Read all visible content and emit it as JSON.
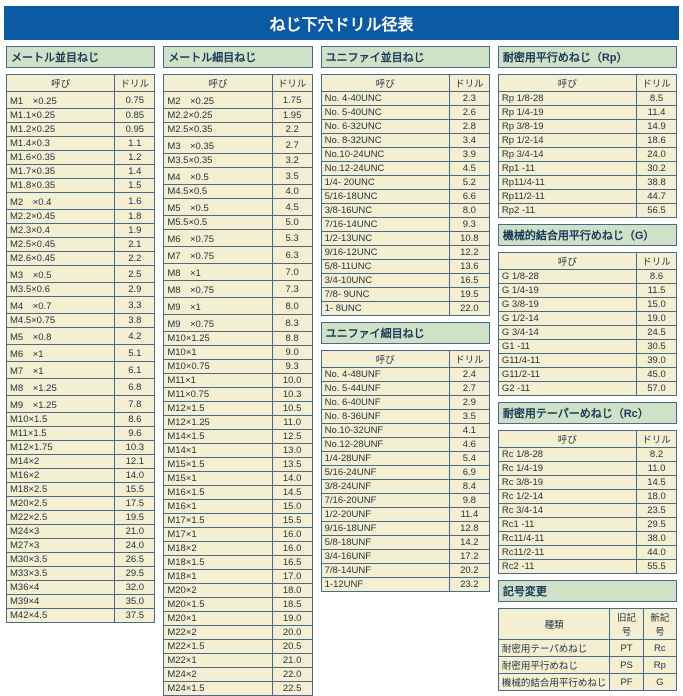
{
  "title": "ねじ下穴ドリル径表",
  "col1": {
    "label": "メートル並目ねじ",
    "headers": [
      "呼び",
      "ドリル"
    ],
    "rows": [
      [
        "M1　×0.25",
        "0.75"
      ],
      [
        "M1.1×0.25",
        "0.85"
      ],
      [
        "M1.2×0.25",
        "0.95"
      ],
      [
        "M1.4×0.3",
        "1.1"
      ],
      [
        "M1.6×0.35",
        "1.2"
      ],
      [
        "M1.7×0.35",
        "1.4"
      ],
      [
        "M1.8×0.35",
        "1.5"
      ],
      [
        "M2　×0.4",
        "1.6"
      ],
      [
        "M2.2×0.45",
        "1.8"
      ],
      [
        "M2.3×0.4",
        "1.9"
      ],
      [
        "M2.5×0.45",
        "2.1"
      ],
      [
        "M2.6×0.45",
        "2.2"
      ],
      [
        "M3　×0.5",
        "2.5"
      ],
      [
        "M3.5×0.6",
        "2.9"
      ],
      [
        "M4　×0.7",
        "3.3"
      ],
      [
        "M4.5×0.75",
        "3.8"
      ],
      [
        "M5　×0.8",
        "4.2"
      ],
      [
        "M6　×1",
        "5.1"
      ],
      [
        "M7　×1",
        "6.1"
      ],
      [
        "M8　×1.25",
        "6.8"
      ],
      [
        "M9　×1.25",
        "7.8"
      ],
      [
        "M10×1.5",
        "8.6"
      ],
      [
        "M11×1.5",
        "9.6"
      ],
      [
        "M12×1.75",
        "10.3"
      ],
      [
        "M14×2",
        "12.1"
      ],
      [
        "M16×2",
        "14.0"
      ],
      [
        "M18×2.5",
        "15.5"
      ],
      [
        "M20×2.5",
        "17.5"
      ],
      [
        "M22×2.5",
        "19.5"
      ],
      [
        "M24×3",
        "21.0"
      ],
      [
        "M27×3",
        "24.0"
      ],
      [
        "M30×3.5",
        "26.5"
      ],
      [
        "M33×3.5",
        "29.5"
      ],
      [
        "M36×4",
        "32.0"
      ],
      [
        "M39×4",
        "35.0"
      ],
      [
        "M42×4.5",
        "37.5"
      ]
    ]
  },
  "col2": {
    "label": "メートル細目ねじ",
    "headers": [
      "呼び",
      "ドリル"
    ],
    "rows": [
      [
        "M2　×0.25",
        "1.75"
      ],
      [
        "M2.2×0.25",
        "1.95"
      ],
      [
        "M2.5×0.35",
        "2.2"
      ],
      [
        "M3　×0.35",
        "2.7"
      ],
      [
        "M3.5×0.35",
        "3.2"
      ],
      [
        "M4　×0.5",
        "3.5"
      ],
      [
        "M4.5×0.5",
        "4.0"
      ],
      [
        "M5　×0.5",
        "4.5"
      ],
      [
        "M5.5×0.5",
        "5.0"
      ],
      [
        "M6　×0.75",
        "5.3"
      ],
      [
        "M7　×0.75",
        "6.3"
      ],
      [
        "M8　×1",
        "7.0"
      ],
      [
        "M8　×0.75",
        "7.3"
      ],
      [
        "M9　×1",
        "8.0"
      ],
      [
        "M9　×0.75",
        "8.3"
      ],
      [
        "M10×1.25",
        "8.8"
      ],
      [
        "M10×1",
        "9.0"
      ],
      [
        "M10×0.75",
        "9.3"
      ],
      [
        "M11×1",
        "10.0"
      ],
      [
        "M11×0.75",
        "10.3"
      ],
      [
        "M12×1.5",
        "10.5"
      ],
      [
        "M12×1.25",
        "11.0"
      ],
      [
        "M14×1.5",
        "12.5"
      ],
      [
        "M14×1",
        "13.0"
      ],
      [
        "M15×1.5",
        "13.5"
      ],
      [
        "M15×1",
        "14.0"
      ],
      [
        "M16×1.5",
        "14.5"
      ],
      [
        "M16×1",
        "15.0"
      ],
      [
        "M17×1.5",
        "15.5"
      ],
      [
        "M17×1",
        "16.0"
      ],
      [
        "M18×2",
        "16.0"
      ],
      [
        "M18×1.5",
        "16.5"
      ],
      [
        "M18×1",
        "17.0"
      ],
      [
        "M20×2",
        "18.0"
      ],
      [
        "M20×1.5",
        "18.5"
      ],
      [
        "M20×1",
        "19.0"
      ],
      [
        "M22×2",
        "20.0"
      ],
      [
        "M22×1.5",
        "20.5"
      ],
      [
        "M22×1",
        "21.0"
      ],
      [
        "M24×2",
        "22.0"
      ],
      [
        "M24×1.5",
        "22.5"
      ]
    ]
  },
  "col3a": {
    "label": "ユニファイ並目ねじ",
    "headers": [
      "呼び",
      "ドリル"
    ],
    "rows": [
      [
        "No.  4-40UNC",
        "2.3"
      ],
      [
        "No.  5-40UNC",
        "2.6"
      ],
      [
        "No.  6-32UNC",
        "2.8"
      ],
      [
        "No.  8-32UNC",
        "3.4"
      ],
      [
        "No.10-24UNC",
        "3.9"
      ],
      [
        "No.12-24UNC",
        "4.5"
      ],
      [
        "1/4-  20UNC",
        "5.2"
      ],
      [
        "5/16-18UNC",
        "6.6"
      ],
      [
        "3/8-16UNC",
        "8.0"
      ],
      [
        "7/16-14UNC",
        "9.3"
      ],
      [
        "1/2-13UNC",
        "10.8"
      ],
      [
        "9/16-12UNC",
        "12.2"
      ],
      [
        "5/8-11UNC",
        "13.6"
      ],
      [
        "3/4-10UNC",
        "16.5"
      ],
      [
        "7/8-  9UNC",
        "19.5"
      ],
      [
        "1-  8UNC",
        "22.0"
      ]
    ]
  },
  "col3b": {
    "label": "ユニファイ細目ねじ",
    "headers": [
      "呼び",
      "ドリル"
    ],
    "rows": [
      [
        "No.  4-48UNF",
        "2.4"
      ],
      [
        "No.  5-44UNF",
        "2.7"
      ],
      [
        "No.  6-40UNF",
        "2.9"
      ],
      [
        "No.  8-36UNF",
        "3.5"
      ],
      [
        "No.10-32UNF",
        "4.1"
      ],
      [
        "No.12-28UNF",
        "4.6"
      ],
      [
        "1/4-28UNF",
        "5.4"
      ],
      [
        "5/16-24UNF",
        "6.9"
      ],
      [
        "3/8-24UNF",
        "8.4"
      ],
      [
        "7/16-20UNF",
        "9.8"
      ],
      [
        "1/2-20UNF",
        "11.4"
      ],
      [
        "9/16-18UNF",
        "12.8"
      ],
      [
        "5/8-18UNF",
        "14.2"
      ],
      [
        "3/4-16UNF",
        "17.2"
      ],
      [
        "7/8-14UNF",
        "20.2"
      ],
      [
        "1-12UNF",
        "23.2"
      ]
    ]
  },
  "col4a": {
    "label": "耐密用平行めねじ（Rp）",
    "headers": [
      "呼び",
      "ドリル"
    ],
    "rows": [
      [
        "Rp   1/8-28",
        "8.5"
      ],
      [
        "Rp   1/4-19",
        "11.4"
      ],
      [
        "Rp   3/8-19",
        "14.9"
      ],
      [
        "Rp   1/2-14",
        "18.6"
      ],
      [
        "Rp   3/4-14",
        "24.0"
      ],
      [
        "Rp1    -11",
        "30.2"
      ],
      [
        "Rp11/4-11",
        "38.8"
      ],
      [
        "Rp11/2-11",
        "44.7"
      ],
      [
        "Rp2    -11",
        "56.5"
      ]
    ]
  },
  "col4b": {
    "label": "機械的結合用平行めねじ（G）",
    "headers": [
      "呼び",
      "ドリル"
    ],
    "rows": [
      [
        "G    1/8-28",
        "8.6"
      ],
      [
        "G    1/4-19",
        "11.5"
      ],
      [
        "G    3/8-19",
        "15.0"
      ],
      [
        "G    1/2-14",
        "19.0"
      ],
      [
        "G    3/4-14",
        "24.5"
      ],
      [
        "G1     -11",
        "30.5"
      ],
      [
        "G11/4-11",
        "39.0"
      ],
      [
        "G11/2-11",
        "45.0"
      ],
      [
        "G2     -11",
        "57.0"
      ]
    ]
  },
  "col4c": {
    "label": "耐密用テーパーめねじ（Rc）",
    "headers": [
      "呼び",
      "ドリル"
    ],
    "rows": [
      [
        "Rc   1/8-28",
        "8.2"
      ],
      [
        "Rc   1/4-19",
        "11.0"
      ],
      [
        "Rc   3/8-19",
        "14.5"
      ],
      [
        "Rc   1/2-14",
        "18.0"
      ],
      [
        "Rc   3/4-14",
        "23.5"
      ],
      [
        "Rc1    -11",
        "29.5"
      ],
      [
        "Rc11/4-11",
        "38.0"
      ],
      [
        "Rc11/2-11",
        "44.0"
      ],
      [
        "Rc2    -11",
        "55.5"
      ]
    ]
  },
  "col4d": {
    "label": "記号変更",
    "headers": [
      "種類",
      "旧記号",
      "新記号"
    ],
    "rows": [
      [
        "耐密用テーパめねじ",
        "PT",
        "Rc"
      ],
      [
        "耐密用平行めねじ",
        "PS",
        "Rp"
      ],
      [
        "機械的結合用平行めねじ",
        "PF",
        "G"
      ]
    ]
  }
}
